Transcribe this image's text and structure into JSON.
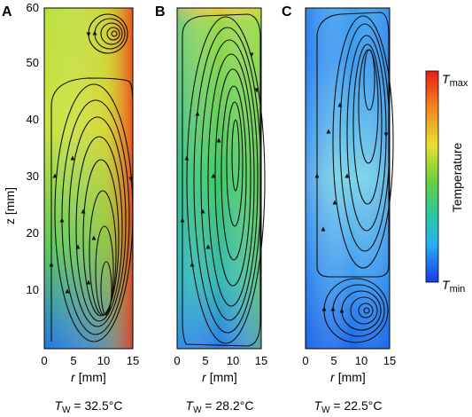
{
  "panels": [
    {
      "letter": "A",
      "caption_T": "T",
      "caption_sub": "W",
      "caption_value": " = 32.5°C",
      "x_label_var": "r",
      "x_label_unit": " [mm]",
      "colors": {
        "top": "#9fd63a",
        "mid": "#c9e23a",
        "bottom": "#1f7fe0",
        "wall": "#f25a1c"
      }
    },
    {
      "letter": "B",
      "caption_T": "T",
      "caption_sub": "W",
      "caption_value": " = 28.2°C",
      "x_label_var": "r",
      "x_label_unit": " [mm]",
      "colors": {
        "top": "#f0d83a",
        "mid": "#45c85a",
        "bottom": "#2a8ee0",
        "wall": "#9ad848"
      }
    },
    {
      "letter": "C",
      "caption_T": "T",
      "caption_sub": "W",
      "caption_value": " = 22.5°C",
      "x_label_var": "r",
      "x_label_unit": " [mm]",
      "colors": {
        "top": "#2a8ef0",
        "mid": "#6ad0e0",
        "bottom": "#1a70e8",
        "wall": "#4ab8f0"
      }
    }
  ],
  "y_axis": {
    "label": "z [mm]",
    "ticks": [
      "10",
      "20",
      "30",
      "40",
      "50",
      "60"
    ],
    "range": [
      0,
      60
    ]
  },
  "x_axis": {
    "ticks": [
      "0",
      "5",
      "10",
      "15"
    ],
    "range": [
      0,
      15
    ]
  },
  "colorbar": {
    "label": "Temperature",
    "max_T": "T",
    "max_sub": "max",
    "min_T": "T",
    "min_sub": "min",
    "colors": [
      "#e8201a",
      "#f08a1e",
      "#f0e030",
      "#7ad040",
      "#2ac88a",
      "#2ab0f0",
      "#1a40e8"
    ]
  }
}
